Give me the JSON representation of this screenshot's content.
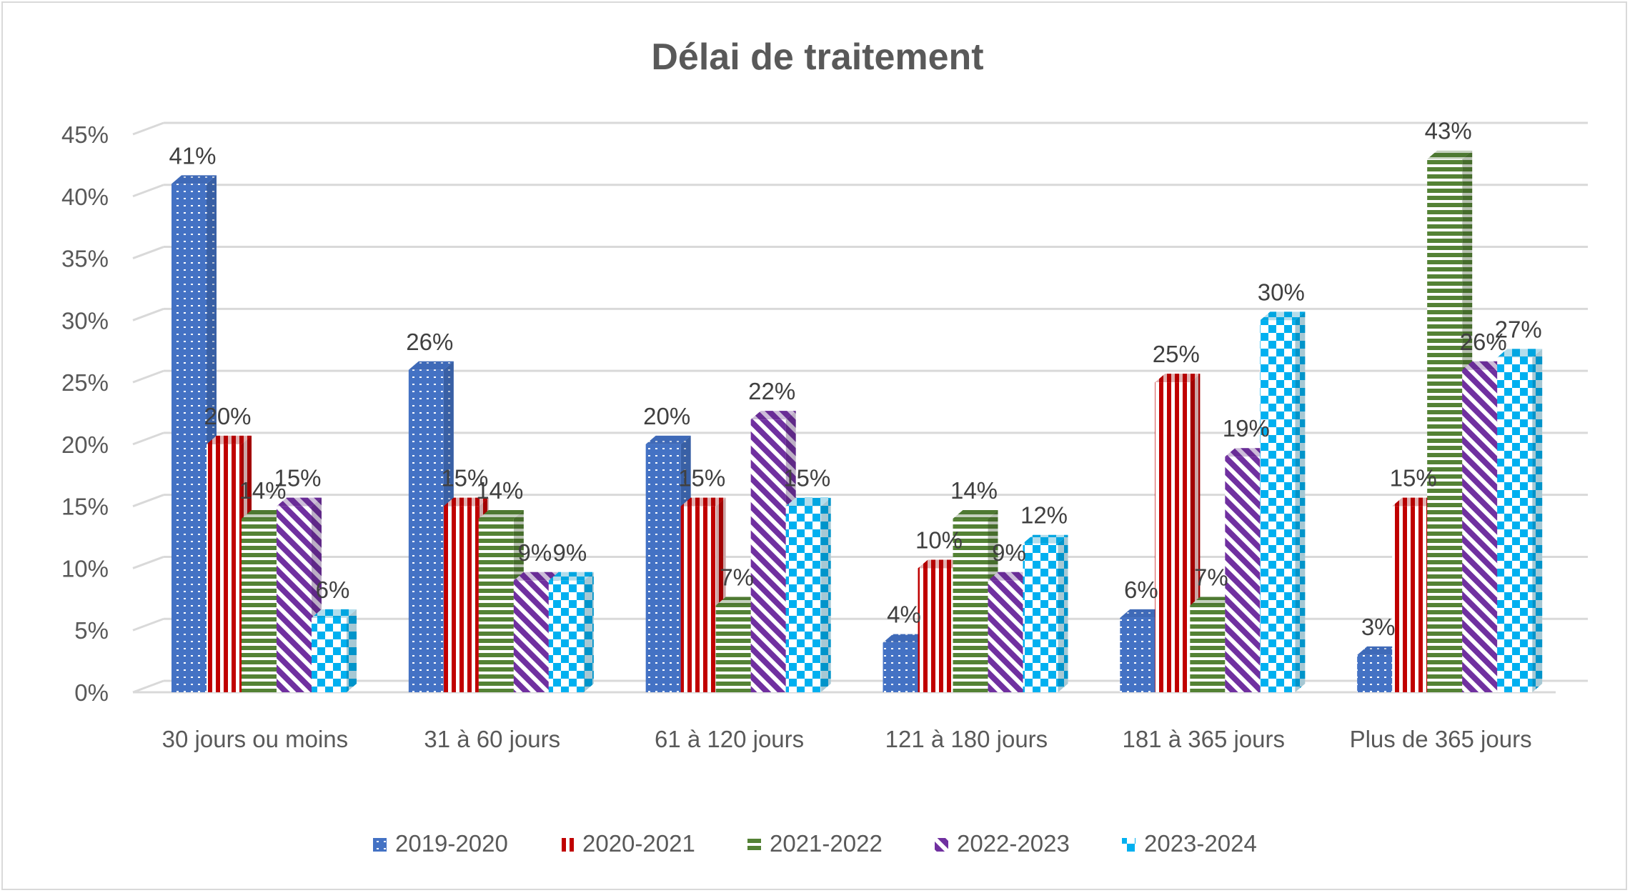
{
  "chart_data": {
    "type": "bar",
    "title": "Délai de traitement",
    "xlabel": "",
    "ylabel": "",
    "ylim": [
      0,
      45
    ],
    "yticks": [
      "0%",
      "5%",
      "10%",
      "15%",
      "20%",
      "25%",
      "30%",
      "35%",
      "40%",
      "45%"
    ],
    "grid": true,
    "legend_position": "bottom",
    "categories": [
      "30 jours ou moins",
      "31 à 60 jours",
      "61 à 120 jours",
      "121 à 180 jours",
      "181 à 365 jours",
      "Plus de 365 jours"
    ],
    "series": [
      {
        "name": "2019-2020",
        "values": [
          41,
          26,
          20,
          4,
          6,
          3
        ],
        "labels": [
          "41%",
          "26%",
          "20%",
          "4%",
          "6%",
          "3%"
        ],
        "color": "#4472c4",
        "pattern": "dots"
      },
      {
        "name": "2020-2021",
        "values": [
          20,
          15,
          15,
          10,
          25,
          15
        ],
        "labels": [
          "20%",
          "15%",
          "15%",
          "10%",
          "25%",
          "15%"
        ],
        "color": "#c00000",
        "pattern": "vertical-stripes"
      },
      {
        "name": "2021-2022",
        "values": [
          14,
          14,
          7,
          14,
          7,
          43
        ],
        "labels": [
          "14%",
          "14%",
          "7%",
          "14%",
          "7%",
          "43%"
        ],
        "color": "#548235",
        "pattern": "horizontal-stripes"
      },
      {
        "name": "2022-2023",
        "values": [
          15,
          9,
          22,
          9,
          19,
          26
        ],
        "labels": [
          "15%",
          "9%",
          "22%",
          "9%",
          "19%",
          "26%"
        ],
        "color": "#7030a0",
        "pattern": "diagonal-stripes"
      },
      {
        "name": "2023-2024",
        "values": [
          6,
          9,
          15,
          12,
          30,
          27
        ],
        "labels": [
          "6%",
          "9%",
          "15%",
          "12%",
          "30%",
          "27%"
        ],
        "color": "#00b0f0",
        "pattern": "checker"
      }
    ]
  }
}
